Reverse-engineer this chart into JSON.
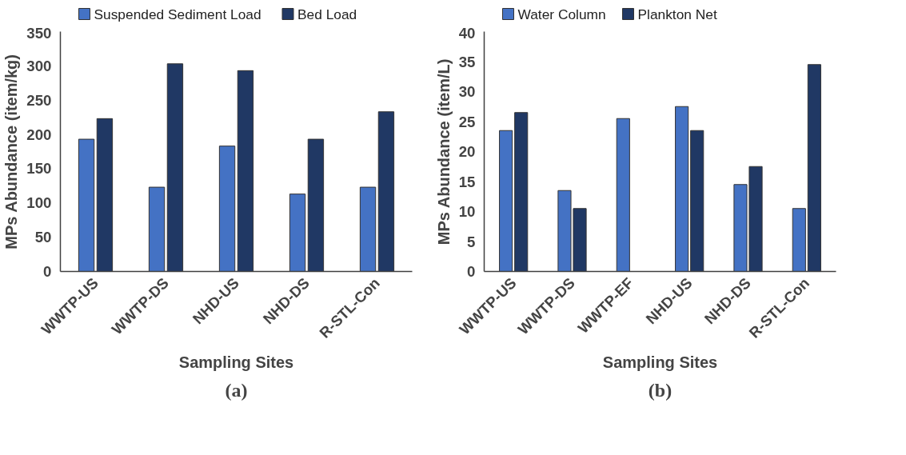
{
  "chart_data": [
    {
      "type": "bar",
      "categories": [
        "WWTP-US",
        "WWTP-DS",
        "NHD-US",
        "NHD-DS",
        "R-STL-Con"
      ],
      "xlabel": "Sampling Sites",
      "ylabel": "MPs Abundance (item/kg)",
      "ylim": [
        0,
        350
      ],
      "yticks": [
        0,
        50,
        100,
        150,
        200,
        250,
        300,
        350
      ],
      "grid": false,
      "legend": "top",
      "annotations": [
        "(a)"
      ],
      "series": [
        {
          "name": "Suspended Sediment Load",
          "color": "#4472c4",
          "values": [
            193,
            123,
            183,
            113,
            123
          ]
        },
        {
          "name": "Bed Load",
          "color": "#203864",
          "values": [
            223,
            303,
            293,
            193,
            233
          ]
        }
      ]
    },
    {
      "type": "bar",
      "categories": [
        "WWTP-US",
        "WWTP-DS",
        "WWTP-EF",
        "NHD-US",
        "NHD-DS",
        "R-STL-Con"
      ],
      "xlabel": "Sampling Sites",
      "ylabel": "MPs Abundance (item/L)",
      "ylim": [
        0,
        40
      ],
      "yticks": [
        0,
        5,
        10,
        15,
        20,
        25,
        30,
        35,
        40
      ],
      "grid": false,
      "legend": "top",
      "annotations": [
        "(b)"
      ],
      "series": [
        {
          "name": "Water Column",
          "color": "#4472c4",
          "values": [
            23.5,
            13.5,
            25.5,
            27.5,
            14.5,
            10.5
          ]
        },
        {
          "name": "Plankton Net",
          "color": "#203864",
          "values": [
            26.5,
            10.5,
            null,
            23.5,
            17.5,
            34.5
          ]
        }
      ]
    }
  ]
}
